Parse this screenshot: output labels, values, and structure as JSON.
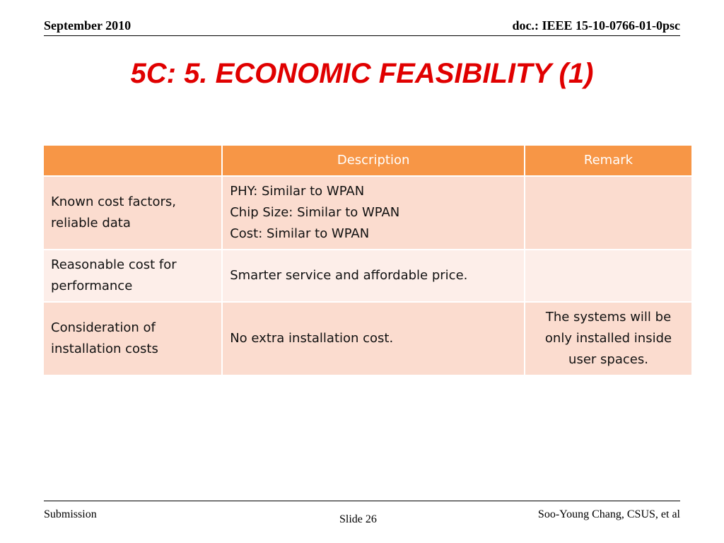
{
  "header": {
    "date": "September 2010",
    "doc_id": "doc.: IEEE 15-10-0766-01-0psc"
  },
  "title": "5C: 5. ECONOMIC FEASIBILITY (1)",
  "table": {
    "columns": [
      "",
      "Description",
      "Remark"
    ],
    "rows": [
      {
        "criterion_lines": [
          "Known cost factors,",
          "reliable data"
        ],
        "description_lines": [
          "PHY: Similar to WPAN",
          "Chip Size: Similar to  WPAN",
          "Cost: Similar to  WPAN"
        ],
        "remark_lines": []
      },
      {
        "criterion_lines": [
          "Reasonable cost for",
          "performance"
        ],
        "description_lines": [
          "Smarter service and affordable price."
        ],
        "remark_lines": []
      },
      {
        "criterion_lines": [
          "Consideration of",
          "installation costs"
        ],
        "description_lines": [
          "No extra installation cost."
        ],
        "remark_lines": [
          "The systems will be",
          "only installed inside",
          "user spaces."
        ]
      }
    ]
  },
  "footer": {
    "left": "Submission",
    "center": "Slide 26",
    "right": "Soo-Young Chang, CSUS, et al"
  },
  "colors": {
    "title": "#e00000",
    "table_header": "#f79646",
    "row_odd": "#fbdccf",
    "row_even": "#fdeee9"
  }
}
